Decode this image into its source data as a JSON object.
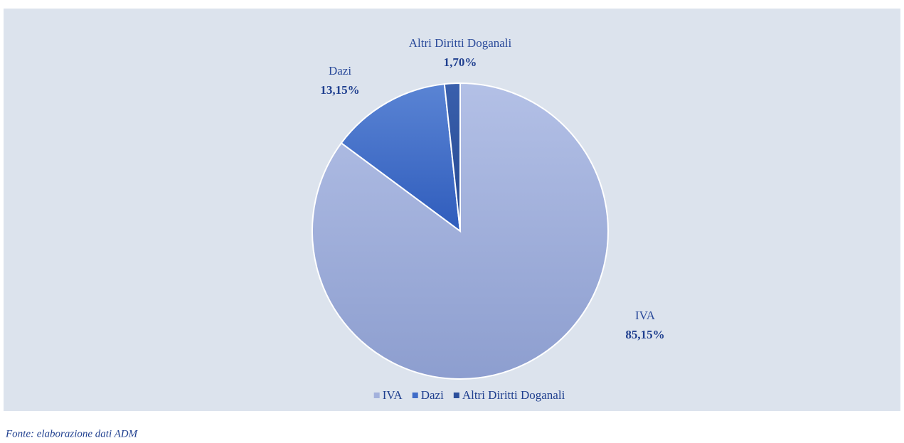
{
  "chart_data": {
    "type": "pie",
    "categories": [
      "IVA",
      "Dazi",
      "Altri Diritti Doganali"
    ],
    "values": [
      85.15,
      13.15,
      1.7
    ],
    "value_labels": [
      "85,15%",
      "13,15%",
      "1,70%"
    ],
    "colors": [
      "#a3b1dc",
      "#3f6cc8",
      "#2b4f9c"
    ],
    "legend": "bottom",
    "source": "Fonte: elaborazione dati ADM"
  }
}
